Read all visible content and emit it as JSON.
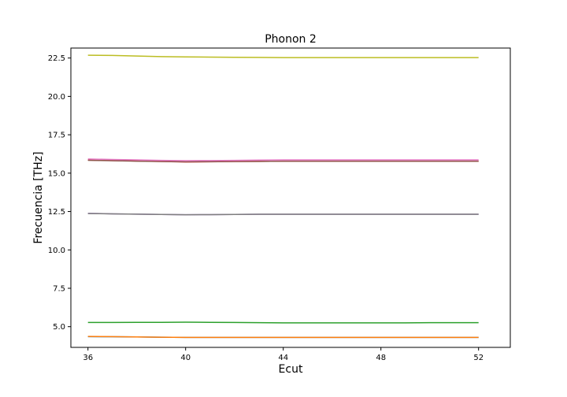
{
  "chart_data": {
    "type": "line",
    "title": "Phonon 2",
    "xlabel": "Ecut",
    "ylabel": "Frecuencia [THz]",
    "xlim": [
      35.3,
      53.3
    ],
    "ylim": [
      3.65,
      23.15
    ],
    "xticks": [
      36,
      40,
      44,
      48,
      52
    ],
    "yticks": [
      5.0,
      7.5,
      10.0,
      12.5,
      15.0,
      17.5,
      20.0,
      22.5
    ],
    "ytick_labels": [
      "5.0",
      "7.5",
      "10.0",
      "12.5",
      "15.0",
      "17.5",
      "20.0",
      "22.5"
    ],
    "grid": false,
    "x": [
      36,
      37,
      38,
      39,
      40,
      41,
      42,
      43,
      44,
      45,
      46,
      47,
      48,
      49,
      50,
      51,
      52
    ],
    "series": [
      {
        "color": "#1f77b4",
        "values": [
          4.35,
          4.34,
          4.33,
          4.31,
          4.3,
          4.3,
          4.3,
          4.3,
          4.3,
          4.3,
          4.3,
          4.3,
          4.3,
          4.3,
          4.3,
          4.3,
          4.3
        ]
      },
      {
        "color": "#ff7f0e",
        "values": [
          4.36,
          4.35,
          4.33,
          4.31,
          4.3,
          4.3,
          4.3,
          4.3,
          4.3,
          4.3,
          4.3,
          4.3,
          4.3,
          4.3,
          4.3,
          4.3,
          4.3
        ]
      },
      {
        "color": "#2ca02c",
        "values": [
          5.27,
          5.27,
          5.28,
          5.28,
          5.29,
          5.28,
          5.27,
          5.26,
          5.25,
          5.25,
          5.25,
          5.25,
          5.25,
          5.25,
          5.26,
          5.26,
          5.26
        ]
      },
      {
        "color": "#d62728",
        "values": [
          15.85,
          15.82,
          15.79,
          15.76,
          15.73,
          15.74,
          15.76,
          15.77,
          15.78,
          15.78,
          15.78,
          15.78,
          15.78,
          15.78,
          15.78,
          15.78,
          15.78
        ]
      },
      {
        "color": "#9467bd",
        "values": [
          12.38,
          12.35,
          12.33,
          12.31,
          12.29,
          12.3,
          12.31,
          12.32,
          12.32,
          12.32,
          12.32,
          12.32,
          12.32,
          12.32,
          12.32,
          12.32,
          12.32
        ]
      },
      {
        "color": "#8c564b",
        "values": [
          15.84,
          15.81,
          15.78,
          15.76,
          15.74,
          15.75,
          15.76,
          15.77,
          15.78,
          15.78,
          15.78,
          15.78,
          15.78,
          15.78,
          15.78,
          15.78,
          15.78
        ]
      },
      {
        "color": "#e377c2",
        "values": [
          15.92,
          15.89,
          15.86,
          15.83,
          15.81,
          15.82,
          15.83,
          15.85,
          15.86,
          15.86,
          15.86,
          15.86,
          15.86,
          15.86,
          15.86,
          15.86,
          15.86
        ]
      },
      {
        "color": "#7f7f7f",
        "values": [
          12.37,
          12.35,
          12.33,
          12.31,
          12.29,
          12.3,
          12.31,
          12.32,
          12.32,
          12.32,
          12.32,
          12.32,
          12.32,
          12.32,
          12.32,
          12.32,
          12.32
        ]
      },
      {
        "color": "#bcbd22",
        "values": [
          22.68,
          22.67,
          22.63,
          22.59,
          22.57,
          22.56,
          22.55,
          22.54,
          22.53,
          22.53,
          22.53,
          22.53,
          22.53,
          22.53,
          22.53,
          22.53,
          22.53
        ]
      }
    ]
  }
}
